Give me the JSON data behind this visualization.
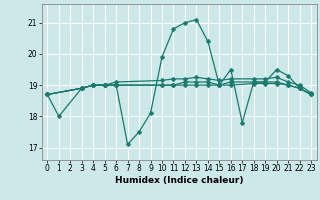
{
  "xlabel": "Humidex (Indice chaleur)",
  "bg_color": "#cce8e8",
  "grid_color": "#ffffff",
  "line_color": "#1a7a6e",
  "xlim": [
    -0.5,
    23.5
  ],
  "ylim": [
    16.6,
    21.6
  ],
  "yticks": [
    17,
    18,
    19,
    20,
    21
  ],
  "xticks": [
    0,
    1,
    2,
    3,
    4,
    5,
    6,
    7,
    8,
    9,
    10,
    11,
    12,
    13,
    14,
    15,
    16,
    17,
    18,
    19,
    20,
    21,
    22,
    23
  ],
  "line1_x": [
    0,
    1,
    3,
    4,
    5,
    6,
    7,
    8,
    9,
    10,
    11,
    12,
    13,
    14,
    15,
    16,
    17,
    18,
    19,
    20,
    21,
    22,
    23
  ],
  "line1_y": [
    18.7,
    18.0,
    18.9,
    19.0,
    19.0,
    19.0,
    17.1,
    17.5,
    18.1,
    19.9,
    20.8,
    21.0,
    21.1,
    20.4,
    19.0,
    19.5,
    17.8,
    19.1,
    19.1,
    19.5,
    19.3,
    18.9,
    18.7
  ],
  "line2_x": [
    0,
    3,
    4,
    5,
    6,
    10,
    11,
    12,
    13,
    14,
    15,
    16,
    18,
    19,
    20,
    21,
    22,
    23
  ],
  "line2_y": [
    18.7,
    18.9,
    19.0,
    19.0,
    19.0,
    19.0,
    19.0,
    19.1,
    19.1,
    19.1,
    19.0,
    19.1,
    19.1,
    19.1,
    19.1,
    19.0,
    18.9,
    18.7
  ],
  "line3_x": [
    0,
    3,
    4,
    5,
    6,
    10,
    11,
    12,
    13,
    14,
    15,
    16,
    18,
    19,
    20,
    21,
    22,
    23
  ],
  "line3_y": [
    18.7,
    18.9,
    19.0,
    19.0,
    19.1,
    19.15,
    19.2,
    19.2,
    19.25,
    19.2,
    19.15,
    19.2,
    19.2,
    19.2,
    19.25,
    19.1,
    19.0,
    18.75
  ],
  "line4_x": [
    0,
    3,
    4,
    5,
    6,
    10,
    11,
    12,
    13,
    14,
    15,
    16,
    18,
    19,
    20,
    21,
    22,
    23
  ],
  "line4_y": [
    18.7,
    18.9,
    19.0,
    19.0,
    19.0,
    19.0,
    19.0,
    19.0,
    19.0,
    19.0,
    19.0,
    19.0,
    19.05,
    19.05,
    19.05,
    19.0,
    18.9,
    18.7
  ]
}
